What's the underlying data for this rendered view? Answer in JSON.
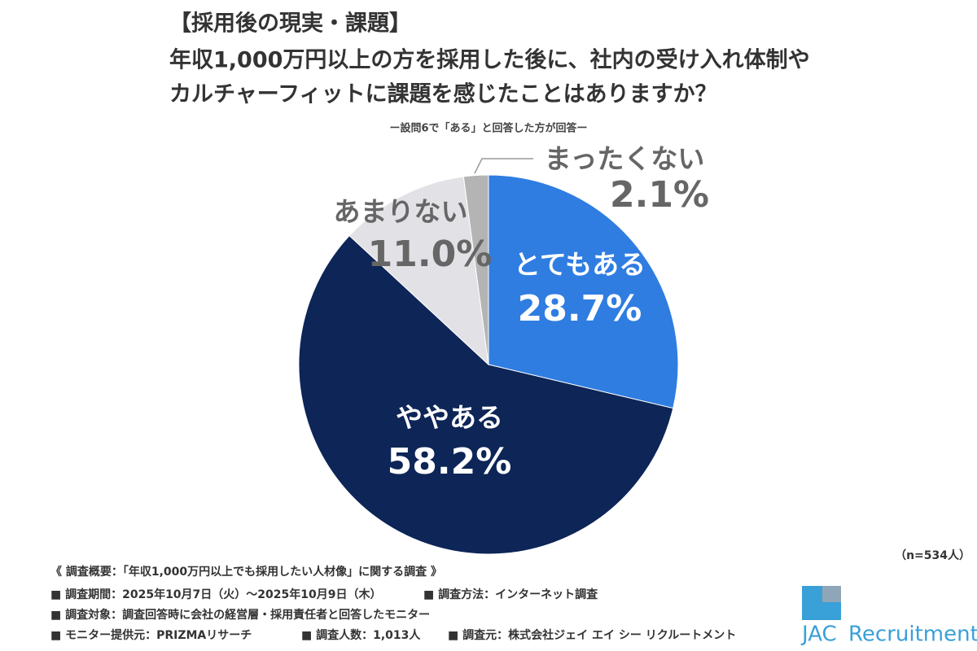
{
  "chart_data": {
    "type": "pie",
    "title_lines": [
      "【採用後の現実・課題】",
      "年収1,000万円以上の方を採用した後に、社内の受け入れ体制や",
      "カルチャーフィットに課題を感じたことはありますか？"
    ],
    "subtitle": "ー設問6で「ある」と回答した方が回答ー",
    "categories": [
      "とてもある",
      "ややある",
      "あまりない",
      "まったくない"
    ],
    "values": [
      28.7,
      58.2,
      11.0,
      2.1
    ],
    "value_labels": [
      "28.7%",
      "58.2%",
      "11.0%",
      "2.1%"
    ],
    "colors": [
      "#2f7de1",
      "#0d2557",
      "#e1e1e6",
      "#b4b4b4"
    ],
    "note": "（n=534人）"
  },
  "footer": {
    "lines": [
      "《 調査概要：「年収1,000万円以上でも採用したい人材像」に関する調査 》",
      "■ 調査期間：2025年10月7日（火）～2025年10月9日（木）",
      "■ 調査方法：インターネット調査",
      "■ 調査対象：調査回答時に会社の経営層・採用責任者と回答したモニター",
      "■ モニター提供元：PRIZMAリサーチ",
      "■ 調査人数：1,013人",
      "■ 調査元：株式会社ジェイ エイ シー リクルートメント"
    ]
  },
  "logo": {
    "brand": "JAC",
    "name": "Recruitment"
  }
}
